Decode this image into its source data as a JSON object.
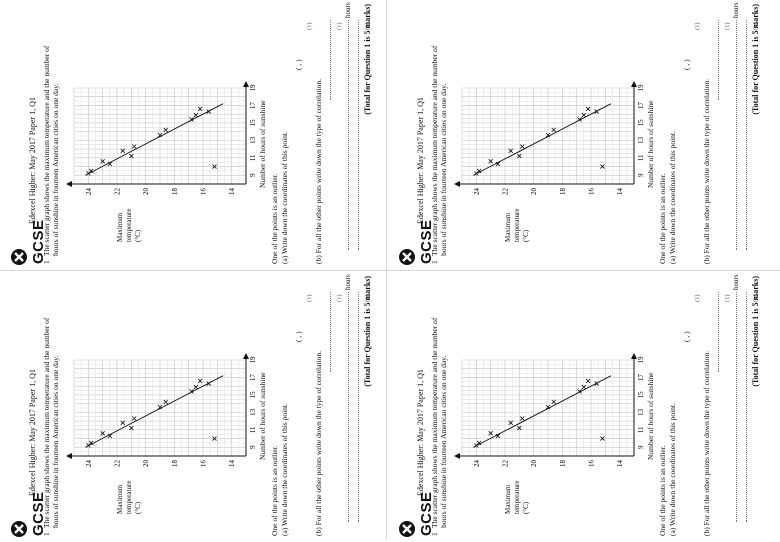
{
  "worksheet": {
    "brand": "GCSE",
    "header": "Edexcel Higher: May 2017 Paper 1, Q1",
    "question_number": "1",
    "intro_line1": "The scatter graph shows the maximum temperature and the number of",
    "intro_line2": "hours of sunshine in fourteen American cities on one day.",
    "ylabel_line1": "Maximum",
    "ylabel_line2": "temperature",
    "ylabel_unit": "(°C)",
    "xlabel": "Number of hours of sunshine",
    "y_ticks": [
      "14",
      "16",
      "18",
      "20",
      "22",
      "24"
    ],
    "x_ticks": [
      "9",
      "11",
      "13",
      "15",
      "17",
      "19"
    ],
    "part_intro": "One of the points is an outlier.",
    "part_a": "(a)  Write down the coordinates of this point.",
    "part_a_answer": "(          ,          )",
    "part_a_marks": "(1)",
    "part_b": "(b)  For all the other points write down the type of correlation.",
    "part_b_marks": "(1)",
    "hours_label": "hours",
    "part_c_marks": "(1)",
    "total": "(Total for Question 1 is 5 marks)",
    "logo_icon": "exam-logo-icon"
  },
  "chart_data": {
    "type": "scatter",
    "xlabel": "Number of hours of sunshine",
    "ylabel": "Maximum temperature (°C)",
    "xlim": [
      8,
      19
    ],
    "ylim": [
      13,
      25
    ],
    "points": [
      {
        "x": 9.2,
        "y": 24.0
      },
      {
        "x": 9.5,
        "y": 23.8
      },
      {
        "x": 10.3,
        "y": 22.5
      },
      {
        "x": 10.6,
        "y": 23.0
      },
      {
        "x": 11.2,
        "y": 21.0
      },
      {
        "x": 11.8,
        "y": 21.6
      },
      {
        "x": 12.3,
        "y": 20.8
      },
      {
        "x": 13.6,
        "y": 19.0
      },
      {
        "x": 14.2,
        "y": 18.6
      },
      {
        "x": 15.4,
        "y": 16.8
      },
      {
        "x": 15.9,
        "y": 16.5
      },
      {
        "x": 16.3,
        "y": 15.6
      },
      {
        "x": 16.6,
        "y": 16.2
      },
      {
        "x": 10.0,
        "y": 15.2
      }
    ],
    "line_of_best_fit": {
      "from": {
        "x": 9.0,
        "y": 24.2
      },
      "to": {
        "x": 17.2,
        "y": 14.6
      }
    }
  }
}
